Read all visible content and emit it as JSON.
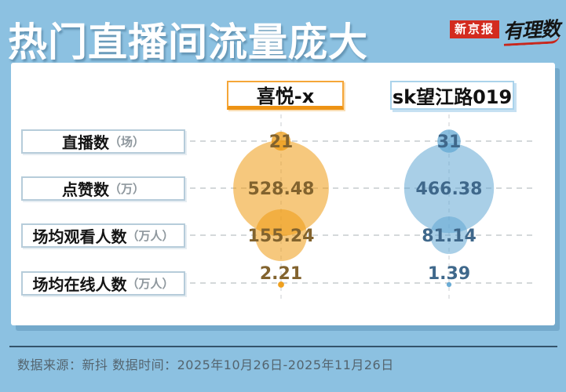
{
  "page": {
    "title": "热门直播间流量庞大",
    "background_color": "#8CC1E1"
  },
  "logo": {
    "brand": "新京报",
    "brand_bg": "#D32B1F",
    "sub_brand": "有理数"
  },
  "rows": [
    {
      "label": "直播数",
      "unit": "（场）"
    },
    {
      "label": "点赞数",
      "unit": "（万）"
    },
    {
      "label": "场均观看人数",
      "unit": "（万人）"
    },
    {
      "label": "场均在线人数",
      "unit": "（万人）"
    }
  ],
  "chart_data": {
    "type": "scatter",
    "subtype": "bubble",
    "title": "热门直播间流量庞大",
    "categories": [
      "直播数（场）",
      "点赞数（万）",
      "场均观看人数（万人）",
      "场均在线人数（万人）"
    ],
    "series": [
      {
        "name": "喜悦-x",
        "color": "#EE9B13",
        "accent": "#F5A638",
        "text_color": "#82632E",
        "values": [
          21,
          528.48,
          155.24,
          2.21
        ]
      },
      {
        "name": "sk望江路019",
        "color": "#63A8D3",
        "accent": "#ABD3EB",
        "text_color": "#3F688B",
        "values": [
          31,
          466.38,
          81.14,
          1.39
        ]
      }
    ],
    "legend_position": "top",
    "bubble_area_proportional": true,
    "grid": "dashed"
  },
  "footer": {
    "text": "数据来源：新抖 数据时间：2025年10月26日-2025年11月26日"
  }
}
